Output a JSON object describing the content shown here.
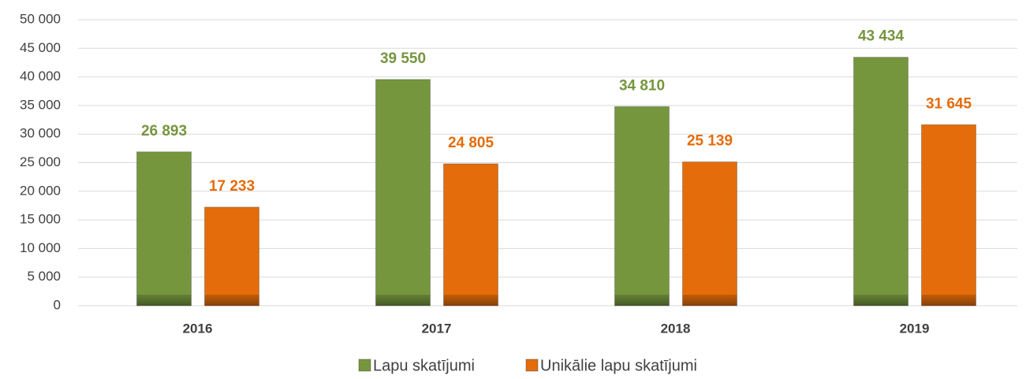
{
  "chart_data": {
    "type": "bar",
    "categories": [
      "2016",
      "2017",
      "2018",
      "2019"
    ],
    "series": [
      {
        "name": "Lapu skatījumi",
        "color": "#76963e",
        "values": [
          26893,
          39550,
          34810,
          43434
        ],
        "value_labels": [
          "26 893",
          "39 550",
          "34 810",
          "43 434"
        ]
      },
      {
        "name": "Unikālie lapu skatījumi",
        "color": "#e46c0a",
        "values": [
          17233,
          24805,
          25139,
          31645
        ],
        "value_labels": [
          "17 233",
          "24 805",
          "25 139",
          "31 645"
        ]
      }
    ],
    "ylim": [
      0,
      50000
    ],
    "yticks": [
      0,
      {
        "value": 5000,
        "label": "5 000"
      },
      {
        "value": 10000,
        "label": "10 000"
      },
      {
        "value": 15000,
        "label": "15 000"
      },
      {
        "value": 20000,
        "label": "20 000"
      },
      {
        "value": 25000,
        "label": "25 000"
      },
      {
        "value": 30000,
        "label": "30 000"
      },
      {
        "value": 35000,
        "label": "35 000"
      },
      {
        "value": 40000,
        "label": "40 000"
      },
      {
        "value": 45000,
        "label": "45 000"
      },
      {
        "value": 50000,
        "label": "50 000"
      }
    ],
    "grid": true,
    "legend": "bottom"
  }
}
